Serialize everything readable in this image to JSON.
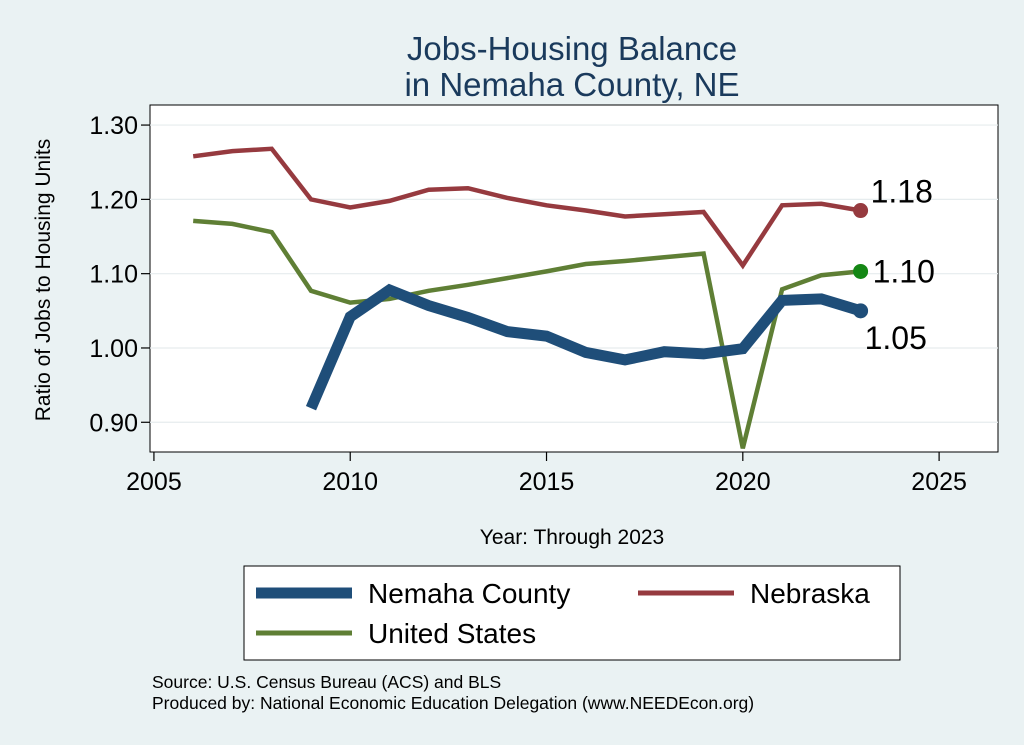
{
  "chart_data": {
    "type": "line",
    "title": [
      "Jobs-Housing Balance",
      "in Nemaha County, NE"
    ],
    "xlabel": "Year: Through 2023",
    "ylabel": "Ratio of Jobs to Housing Units",
    "xlim": [
      2004.9,
      2026.5
    ],
    "ylim": [
      0.86,
      1.327
    ],
    "xticks": [
      2005,
      2010,
      2015,
      2020,
      2025
    ],
    "yticks": [
      0.9,
      1.0,
      1.1,
      1.2,
      1.3
    ],
    "ytick_labels": [
      "0.90",
      "1.00",
      "1.10",
      "1.20",
      "1.30"
    ],
    "grid": true,
    "series": [
      {
        "name": "Nebraska",
        "color": "#963a3f",
        "x": [
          2006,
          2007,
          2008,
          2009,
          2010,
          2011,
          2012,
          2013,
          2014,
          2015,
          2016,
          2017,
          2018,
          2019,
          2020,
          2021,
          2022,
          2023
        ],
        "values": [
          1.258,
          1.265,
          1.268,
          1.2,
          1.189,
          1.198,
          1.213,
          1.215,
          1.202,
          1.192,
          1.185,
          1.177,
          1.18,
          1.183,
          1.111,
          1.192,
          1.194,
          1.185
        ],
        "end_label": "1.18",
        "marker_color": "#963a3f"
      },
      {
        "name": "United States",
        "color": "#5f7f35",
        "x": [
          2006,
          2007,
          2008,
          2009,
          2010,
          2011,
          2012,
          2013,
          2014,
          2015,
          2016,
          2017,
          2018,
          2019,
          2020,
          2021,
          2022,
          2023
        ],
        "values": [
          1.171,
          1.167,
          1.156,
          1.077,
          1.061,
          1.066,
          1.077,
          1.085,
          1.094,
          1.103,
          1.113,
          1.117,
          1.122,
          1.127,
          0.865,
          1.079,
          1.098,
          1.103
        ],
        "end_label": "1.10",
        "marker_color": "#148714"
      },
      {
        "name": "Nemaha County",
        "color": "#1f4e79",
        "x": [
          2009,
          2010,
          2011,
          2012,
          2013,
          2014,
          2015,
          2016,
          2017,
          2018,
          2019,
          2020,
          2021,
          2022,
          2023
        ],
        "values": [
          0.919,
          1.042,
          1.078,
          1.057,
          1.041,
          1.022,
          1.016,
          0.994,
          0.984,
          0.995,
          0.992,
          0.999,
          1.064,
          1.066,
          1.05
        ],
        "end_label": "1.05",
        "marker_color": "#1f4e79"
      }
    ],
    "legend": {
      "position": "bottom",
      "entries": [
        {
          "name": "Nemaha County",
          "color": "#1f4e79"
        },
        {
          "name": "Nebraska",
          "color": "#963a3f"
        },
        {
          "name": "United States",
          "color": "#5f7f35"
        }
      ]
    }
  },
  "footer": {
    "source": "Source: U.S. Census Bureau (ACS) and BLS",
    "produced_by": "Produced by: National Economic Education Delegation (www.NEEDEcon.org)"
  }
}
